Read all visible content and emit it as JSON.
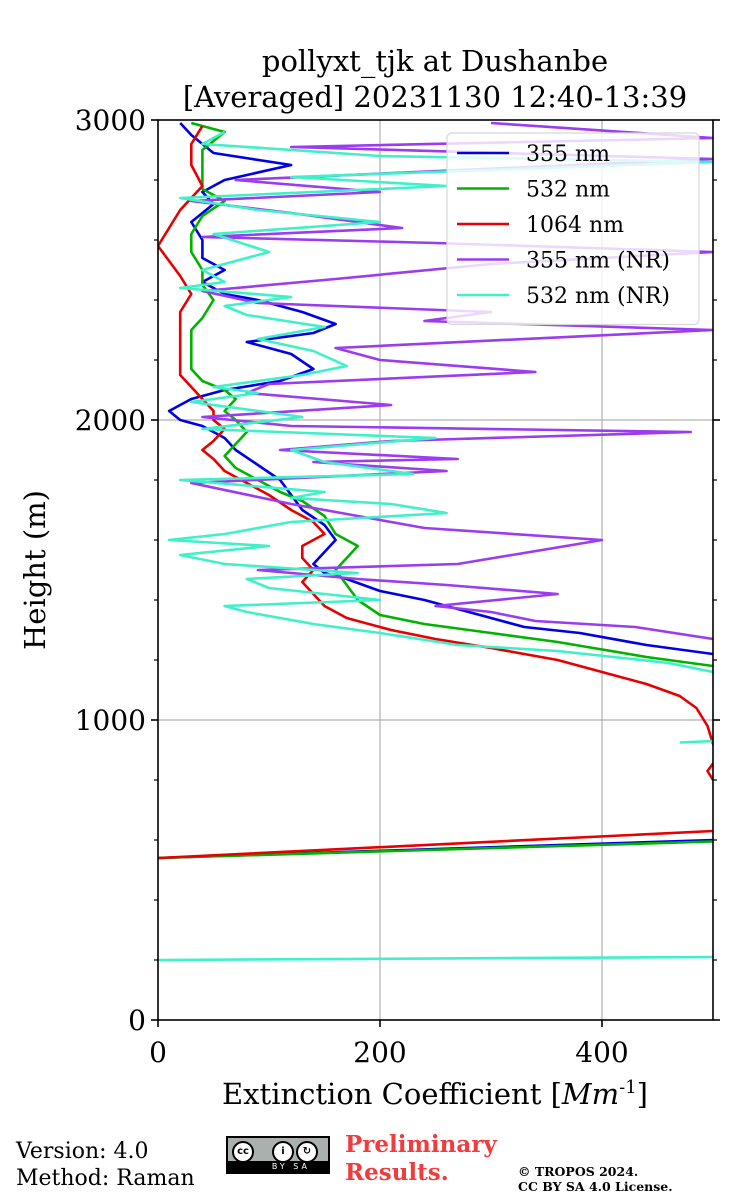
{
  "chart_data": {
    "type": "line",
    "title": "pollyxt_tjk at Dushanbe",
    "subtitle": "[Averaged] 20231130 12:40-13:39",
    "xlabel": "Extinction Coefficient [$Mm^{-1}$]",
    "ylabel": "Height (m)",
    "xlim": [
      0,
      500
    ],
    "ylim": [
      0,
      3000
    ],
    "xticks": [
      0,
      200,
      400
    ],
    "yticks": [
      0,
      1000,
      2000,
      3000
    ],
    "grid": true,
    "legend_position": "top-right",
    "series": [
      {
        "name": "355 nm",
        "color": "#0000e6",
        "points": [
          [
            0,
            540
          ],
          [
            500,
            600
          ],
          [
            null,
            null
          ],
          [
            500,
            1220
          ],
          [
            440,
            1250
          ],
          [
            380,
            1290
          ],
          [
            330,
            1310
          ],
          [
            280,
            1360
          ],
          [
            240,
            1400
          ],
          [
            200,
            1430
          ],
          [
            170,
            1470
          ],
          [
            150,
            1490
          ],
          [
            140,
            1520
          ],
          [
            150,
            1560
          ],
          [
            160,
            1600
          ],
          [
            150,
            1650
          ],
          [
            130,
            1700
          ],
          [
            120,
            1750
          ],
          [
            110,
            1800
          ],
          [
            90,
            1850
          ],
          [
            70,
            1900
          ],
          [
            60,
            1940
          ],
          [
            40,
            1980
          ],
          [
            20,
            2000
          ],
          [
            10,
            2030
          ],
          [
            30,
            2070
          ],
          [
            60,
            2100
          ],
          [
            110,
            2130
          ],
          [
            140,
            2170
          ],
          [
            120,
            2220
          ],
          [
            80,
            2260
          ],
          [
            140,
            2290
          ],
          [
            160,
            2320
          ],
          [
            130,
            2360
          ],
          [
            90,
            2400
          ],
          [
            60,
            2420
          ],
          [
            40,
            2460
          ],
          [
            60,
            2500
          ],
          [
            40,
            2540
          ],
          [
            40,
            2600
          ],
          [
            30,
            2660
          ],
          [
            50,
            2720
          ],
          [
            40,
            2760
          ],
          [
            60,
            2800
          ],
          [
            120,
            2850
          ],
          [
            50,
            2890
          ],
          [
            30,
            2950
          ],
          [
            20,
            2990
          ]
        ]
      },
      {
        "name": "532 nm",
        "color": "#00b300",
        "points": [
          [
            0,
            540
          ],
          [
            500,
            595
          ],
          [
            null,
            null
          ],
          [
            500,
            1180
          ],
          [
            440,
            1210
          ],
          [
            360,
            1260
          ],
          [
            300,
            1290
          ],
          [
            240,
            1320
          ],
          [
            200,
            1350
          ],
          [
            180,
            1400
          ],
          [
            170,
            1450
          ],
          [
            160,
            1500
          ],
          [
            170,
            1540
          ],
          [
            180,
            1580
          ],
          [
            160,
            1620
          ],
          [
            150,
            1680
          ],
          [
            130,
            1730
          ],
          [
            110,
            1760
          ],
          [
            90,
            1800
          ],
          [
            70,
            1840
          ],
          [
            60,
            1880
          ],
          [
            70,
            1920
          ],
          [
            80,
            1960
          ],
          [
            70,
            2000
          ],
          [
            60,
            2030
          ],
          [
            70,
            2070
          ],
          [
            60,
            2100
          ],
          [
            40,
            2130
          ],
          [
            30,
            2170
          ],
          [
            30,
            2220
          ],
          [
            30,
            2270
          ],
          [
            30,
            2300
          ],
          [
            40,
            2340
          ],
          [
            50,
            2400
          ],
          [
            40,
            2450
          ],
          [
            40,
            2500
          ],
          [
            30,
            2560
          ],
          [
            30,
            2620
          ],
          [
            40,
            2680
          ],
          [
            60,
            2730
          ],
          [
            40,
            2770
          ],
          [
            40,
            2820
          ],
          [
            40,
            2900
          ],
          [
            60,
            2960
          ],
          [
            30,
            2990
          ]
        ]
      },
      {
        "name": "1064 nm",
        "color": "#e60000",
        "points": [
          [
            0,
            540
          ],
          [
            500,
            630
          ],
          [
            null,
            null
          ],
          [
            500,
            800
          ],
          [
            495,
            830
          ],
          [
            505,
            880
          ],
          [
            500,
            920
          ],
          [
            495,
            980
          ],
          [
            485,
            1040
          ],
          [
            470,
            1080
          ],
          [
            440,
            1120
          ],
          [
            400,
            1160
          ],
          [
            360,
            1200
          ],
          [
            300,
            1240
          ],
          [
            250,
            1270
          ],
          [
            210,
            1300
          ],
          [
            170,
            1340
          ],
          [
            150,
            1380
          ],
          [
            140,
            1420
          ],
          [
            130,
            1460
          ],
          [
            140,
            1500
          ],
          [
            130,
            1540
          ],
          [
            130,
            1580
          ],
          [
            150,
            1620
          ],
          [
            140,
            1660
          ],
          [
            120,
            1700
          ],
          [
            100,
            1750
          ],
          [
            80,
            1790
          ],
          [
            60,
            1830
          ],
          [
            50,
            1870
          ],
          [
            40,
            1900
          ],
          [
            50,
            1930
          ],
          [
            60,
            1970
          ],
          [
            50,
            2000
          ],
          [
            50,
            2030
          ],
          [
            40,
            2070
          ],
          [
            30,
            2110
          ],
          [
            20,
            2150
          ],
          [
            20,
            2200
          ],
          [
            20,
            2250
          ],
          [
            20,
            2300
          ],
          [
            20,
            2360
          ],
          [
            30,
            2420
          ],
          [
            20,
            2480
          ],
          [
            10,
            2530
          ],
          [
            0,
            2580
          ],
          [
            20,
            2700
          ],
          [
            40,
            2780
          ],
          [
            30,
            2850
          ],
          [
            30,
            2920
          ],
          [
            40,
            2980
          ]
        ]
      },
      {
        "name": "355 nm (NR)",
        "color": "#9b3cf0",
        "points": [
          [
            500,
            1270
          ],
          [
            430,
            1310
          ],
          [
            340,
            1330
          ],
          [
            300,
            1360
          ],
          [
            250,
            1380
          ],
          [
            360,
            1420
          ],
          [
            260,
            1450
          ],
          [
            180,
            1470
          ],
          [
            90,
            1500
          ],
          [
            270,
            1520
          ],
          [
            400,
            1600
          ],
          [
            240,
            1640
          ],
          [
            180,
            1680
          ],
          [
            120,
            1720
          ],
          [
            30,
            1790
          ],
          [
            260,
            1830
          ],
          [
            140,
            1860
          ],
          [
            270,
            1870
          ],
          [
            110,
            1900
          ],
          [
            210,
            1930
          ],
          [
            480,
            1960
          ],
          [
            120,
            1980
          ],
          [
            40,
            2010
          ],
          [
            210,
            2050
          ],
          [
            80,
            2090
          ],
          [
            100,
            2120
          ],
          [
            340,
            2160
          ],
          [
            200,
            2200
          ],
          [
            160,
            2240
          ],
          [
            500,
            2300
          ],
          [
            240,
            2330
          ],
          [
            300,
            2360
          ],
          [
            90,
            2390
          ],
          [
            40,
            2430
          ],
          [
            160,
            2470
          ],
          [
            300,
            2520
          ],
          [
            500,
            2560
          ],
          [
            250,
            2590
          ],
          [
            40,
            2610
          ],
          [
            220,
            2640
          ],
          [
            120,
            2690
          ],
          [
            30,
            2730
          ],
          [
            200,
            2760
          ],
          [
            70,
            2800
          ],
          [
            500,
            2870
          ],
          [
            120,
            2910
          ],
          [
            500,
            2940
          ],
          [
            300,
            2990
          ]
        ]
      },
      {
        "name": "532 nm (NR)",
        "color": "#40f0c8",
        "points": [
          [
            0,
            200
          ],
          [
            500,
            210
          ],
          [
            null,
            null
          ],
          [
            500,
            1160
          ],
          [
            460,
            1190
          ],
          [
            360,
            1230
          ],
          [
            270,
            1250
          ],
          [
            200,
            1290
          ],
          [
            140,
            1320
          ],
          [
            80,
            1360
          ],
          [
            60,
            1380
          ],
          [
            200,
            1400
          ],
          [
            100,
            1440
          ],
          [
            80,
            1470
          ],
          [
            180,
            1490
          ],
          [
            60,
            1520
          ],
          [
            20,
            1550
          ],
          [
            100,
            1580
          ],
          [
            10,
            1600
          ],
          [
            60,
            1620
          ],
          [
            120,
            1660
          ],
          [
            260,
            1690
          ],
          [
            210,
            1720
          ],
          [
            120,
            1740
          ],
          [
            150,
            1760
          ],
          [
            20,
            1800
          ],
          [
            230,
            1820
          ],
          [
            150,
            1860
          ],
          [
            120,
            1900
          ],
          [
            250,
            1940
          ],
          [
            40,
            1970
          ],
          [
            130,
            2010
          ],
          [
            30,
            2060
          ],
          [
            90,
            2090
          ],
          [
            50,
            2110
          ],
          [
            130,
            2150
          ],
          [
            170,
            2180
          ],
          [
            140,
            2230
          ],
          [
            90,
            2270
          ],
          [
            150,
            2310
          ],
          [
            80,
            2350
          ],
          [
            60,
            2380
          ],
          [
            120,
            2410
          ],
          [
            20,
            2440
          ],
          [
            60,
            2460
          ],
          [
            40,
            2500
          ],
          [
            100,
            2560
          ],
          [
            50,
            2620
          ],
          [
            200,
            2660
          ],
          [
            90,
            2700
          ],
          [
            20,
            2740
          ],
          [
            260,
            2780
          ],
          [
            120,
            2810
          ],
          [
            500,
            2860
          ],
          [
            200,
            2880
          ],
          [
            40,
            2920
          ],
          [
            60,
            2960
          ]
        ]
      },
      {
        "name": "",
        "color": "#40f0c8",
        "points": [
          [
            470,
            925
          ],
          [
            500,
            930
          ],
          [
            510,
            935
          ]
        ]
      }
    ]
  },
  "footer": {
    "version": "Version: 4.0",
    "method": "Method: Raman",
    "preliminary_line1": "Preliminary",
    "preliminary_line2": "Results.",
    "copyright_line1": "© TROPOS 2024.",
    "copyright_line2": "CC BY SA 4.0 License."
  }
}
